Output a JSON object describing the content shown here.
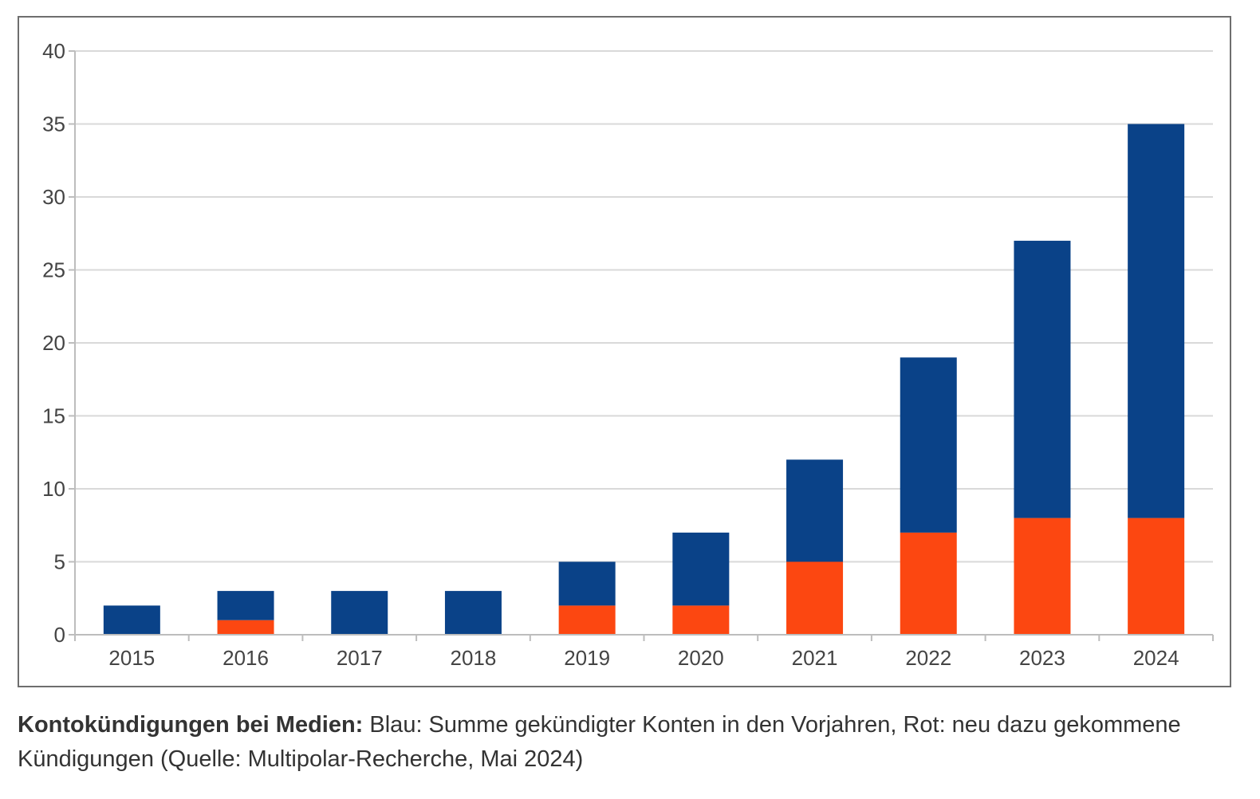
{
  "chart_data": {
    "type": "bar",
    "stacked": true,
    "categories": [
      "2015",
      "2016",
      "2017",
      "2018",
      "2019",
      "2020",
      "2021",
      "2022",
      "2023",
      "2024"
    ],
    "series": [
      {
        "key": "neu",
        "color": "#fc4711",
        "values": [
          0,
          1,
          0,
          0,
          2,
          2,
          5,
          7,
          8,
          8
        ]
      },
      {
        "key": "summe_vorjahre",
        "color": "#0a4288",
        "values": [
          2,
          2,
          3,
          3,
          3,
          5,
          7,
          12,
          19,
          27
        ]
      }
    ],
    "ylim": [
      0,
      40
    ],
    "yticks": [
      "0",
      "5",
      "10",
      "15",
      "20",
      "25",
      "30",
      "35",
      "40"
    ],
    "grid": true,
    "legend": "none"
  },
  "caption": {
    "lead": "Kontokündigungen bei Medien:",
    "text": " Blau: Summe gekündigter Konten in den Vorjahren, Rot: neu dazu gekommene Kündigungen (Quelle: Multipolar-Recherche, Mai 2024)"
  }
}
